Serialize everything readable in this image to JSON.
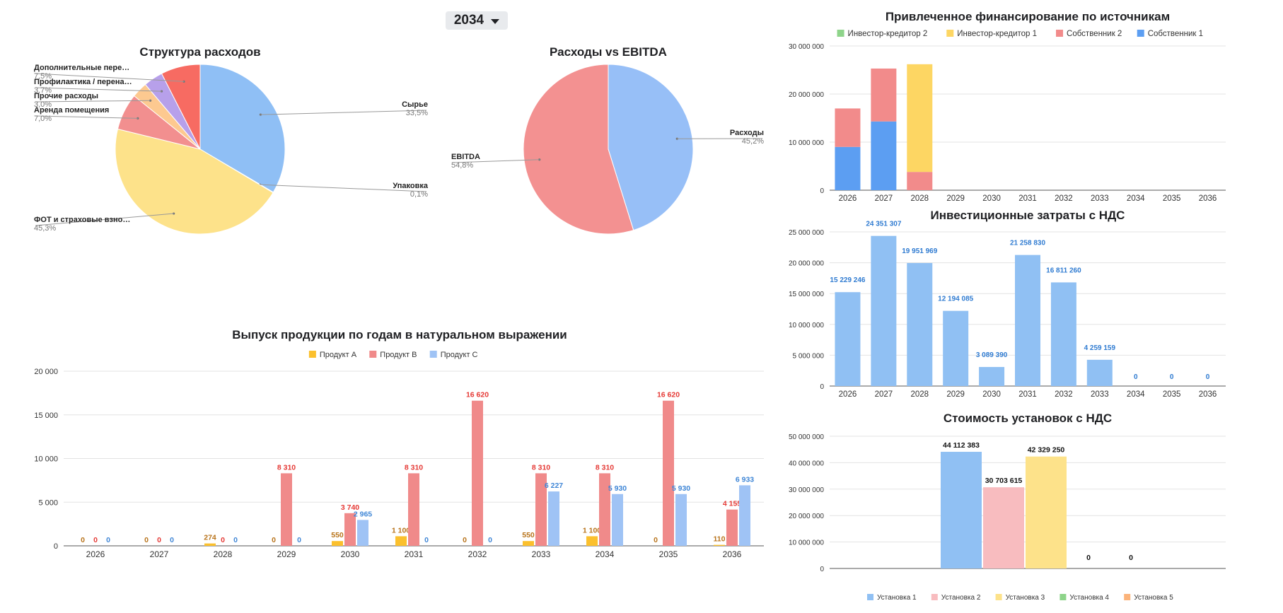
{
  "year_selector": {
    "value": "2034"
  },
  "chart_data": [
    {
      "id": "cost-structure",
      "type": "pie",
      "title": "Структура расходов",
      "slices": [
        {
          "label": "Сырье",
          "value": 33.5,
          "display": "33,5%",
          "color": "#8fbff5"
        },
        {
          "label": "Упаковка",
          "value": 0.1,
          "display": "0,1%",
          "color": "#a8cff0"
        },
        {
          "label": "ФОТ и страховые взно…",
          "value": 45.3,
          "display": "45,3%",
          "color": "#fde28a"
        },
        {
          "label": "Аренда помещения",
          "value": 7.0,
          "display": "7,0%",
          "color": "#f28f8f"
        },
        {
          "label": "Прочие расходы",
          "value": 3.0,
          "display": "3,0%",
          "color": "#fdc990"
        },
        {
          "label": "Профилактика / перена…",
          "value": 3.7,
          "display": "3,7%",
          "color": "#b7a0ea"
        },
        {
          "label": "Дополнительные пере…",
          "value": 7.5,
          "display": "7,5%",
          "color": "#f76b62"
        }
      ]
    },
    {
      "id": "costs-vs-ebitda",
      "type": "pie",
      "title": "Расходы vs EBITDA",
      "slices": [
        {
          "label": "Расходы",
          "value": 45.2,
          "display": "45,2%",
          "color": "#97bff7"
        },
        {
          "label": "EBITDA",
          "value": 54.8,
          "display": "54,8%",
          "color": "#f39191"
        }
      ]
    },
    {
      "id": "production-volume",
      "type": "bar",
      "title": "Выпуск продукции по годам в натуральном выражении",
      "categories": [
        "2026",
        "2027",
        "2028",
        "2029",
        "2030",
        "2031",
        "2032",
        "2033",
        "2034",
        "2035",
        "2036"
      ],
      "ylim": [
        0,
        20000
      ],
      "yticks": [
        "0",
        "5 000",
        "10 000",
        "15 000",
        "20 000"
      ],
      "legend_position": "top",
      "series": [
        {
          "name": "Продукт A",
          "color": "#fbc02d",
          "label_color": "#b8731a",
          "values": [
            0,
            0,
            274,
            0,
            550,
            1100,
            0,
            550,
            1100,
            0,
            110
          ],
          "labels": [
            "0",
            "0",
            "274",
            "0",
            "550",
            "1 100",
            "0",
            "550",
            "1 100",
            "0",
            "110"
          ]
        },
        {
          "name": "Продукт B",
          "color": "#f08a8a",
          "label_color": "#e53935",
          "values": [
            0,
            0,
            0,
            8310,
            3740,
            8310,
            16620,
            8310,
            8310,
            16620,
            4155
          ],
          "labels": [
            "0",
            "0",
            "0",
            "8 310",
            "3 740",
            "8 310",
            "16 620",
            "8 310",
            "8 310",
            "16 620",
            "4 155"
          ]
        },
        {
          "name": "Продукт C",
          "color": "#9fc3f5",
          "label_color": "#3f86d6",
          "values": [
            0,
            0,
            0,
            0,
            2965,
            0,
            0,
            6227,
            5930,
            5930,
            6933
          ],
          "labels": [
            "0",
            "0",
            "0",
            "0",
            "2 965",
            "0",
            "0",
            "6 227",
            "5 930",
            "5 930",
            "6 933"
          ]
        }
      ]
    },
    {
      "id": "financing-sources",
      "type": "bar",
      "stacked": true,
      "title": "Привлеченное финансирование по источникам",
      "categories": [
        "2026",
        "2027",
        "2028",
        "2029",
        "2030",
        "2031",
        "2032",
        "2033",
        "2034",
        "2035",
        "2036"
      ],
      "ylim": [
        0,
        30000000
      ],
      "yticks": [
        "0",
        "10 000 000",
        "20 000 000",
        "30 000 000"
      ],
      "legend_position": "top",
      "legend": [
        {
          "name": "Инвестор-кредитор 2",
          "color": "#8ed48a"
        },
        {
          "name": "Инвестор-кредитор 1",
          "color": "#fdd663"
        },
        {
          "name": "Собственник 2",
          "color": "#f28b8b"
        },
        {
          "name": "Собственник 1",
          "color": "#5c9ef2"
        }
      ],
      "series": [
        {
          "name": "Собственник 1",
          "color": "#5c9ef2",
          "values": [
            9000000,
            14300000,
            0,
            0,
            0,
            0,
            0,
            0,
            0,
            0,
            0
          ]
        },
        {
          "name": "Собственник 2",
          "color": "#f28b8b",
          "values": [
            8000000,
            11000000,
            3800000,
            0,
            0,
            0,
            0,
            0,
            0,
            0,
            0
          ]
        },
        {
          "name": "Инвестор-кредитор 1",
          "color": "#fdd663",
          "values": [
            0,
            0,
            22400000,
            0,
            0,
            0,
            0,
            0,
            0,
            0,
            0
          ]
        },
        {
          "name": "Инвестор-кредитор 2",
          "color": "#8ed48a",
          "values": [
            0,
            0,
            0,
            0,
            0,
            0,
            0,
            0,
            0,
            0,
            0
          ]
        }
      ]
    },
    {
      "id": "investment-costs",
      "type": "bar",
      "title": "Инвестиционные затраты с НДС",
      "categories": [
        "2026",
        "2027",
        "2028",
        "2029",
        "2030",
        "2031",
        "2032",
        "2033",
        "2034",
        "2035",
        "2036"
      ],
      "ylim": [
        0,
        25000000
      ],
      "yticks": [
        "0",
        "5 000 000",
        "10 000 000",
        "15 000 000",
        "20 000 000",
        "25 000 000"
      ],
      "series": [
        {
          "color": "#90c0f3",
          "label_color": "#2f7bd1",
          "values": [
            15229246,
            24351307,
            19951969,
            12194085,
            3089390,
            21258830,
            16811260,
            4259159,
            0,
            0,
            0
          ],
          "labels": [
            "15 229 246",
            "24 351 307",
            "19 951 969",
            "12 194 085",
            "3 089 390",
            "21 258 830",
            "16 811 260",
            "4 259 159",
            "0",
            "0",
            "0"
          ]
        }
      ]
    },
    {
      "id": "installation-costs",
      "type": "bar",
      "title": "Стоимость установок с НДС",
      "ylim": [
        0,
        50000000
      ],
      "yticks": [
        "0",
        "10 000 000",
        "20 000 000",
        "30 000 000",
        "40 000 000",
        "50 000 000"
      ],
      "legend_position": "bottom",
      "series": [
        {
          "name": "Установка 1",
          "color": "#90c0f3",
          "value": 44112383,
          "label": "44 112 383"
        },
        {
          "name": "Установка 2",
          "color": "#f8bcbf",
          "value": 30703615,
          "label": "30 703 615"
        },
        {
          "name": "Установка 3",
          "color": "#fde28a",
          "value": 42329250,
          "label": "42 329 250"
        },
        {
          "name": "Установка 4",
          "color": "#8ed48a",
          "value": 0,
          "label": "0"
        },
        {
          "name": "Установка 5",
          "color": "#fbb37a",
          "value": 0,
          "label": "0"
        }
      ]
    }
  ]
}
